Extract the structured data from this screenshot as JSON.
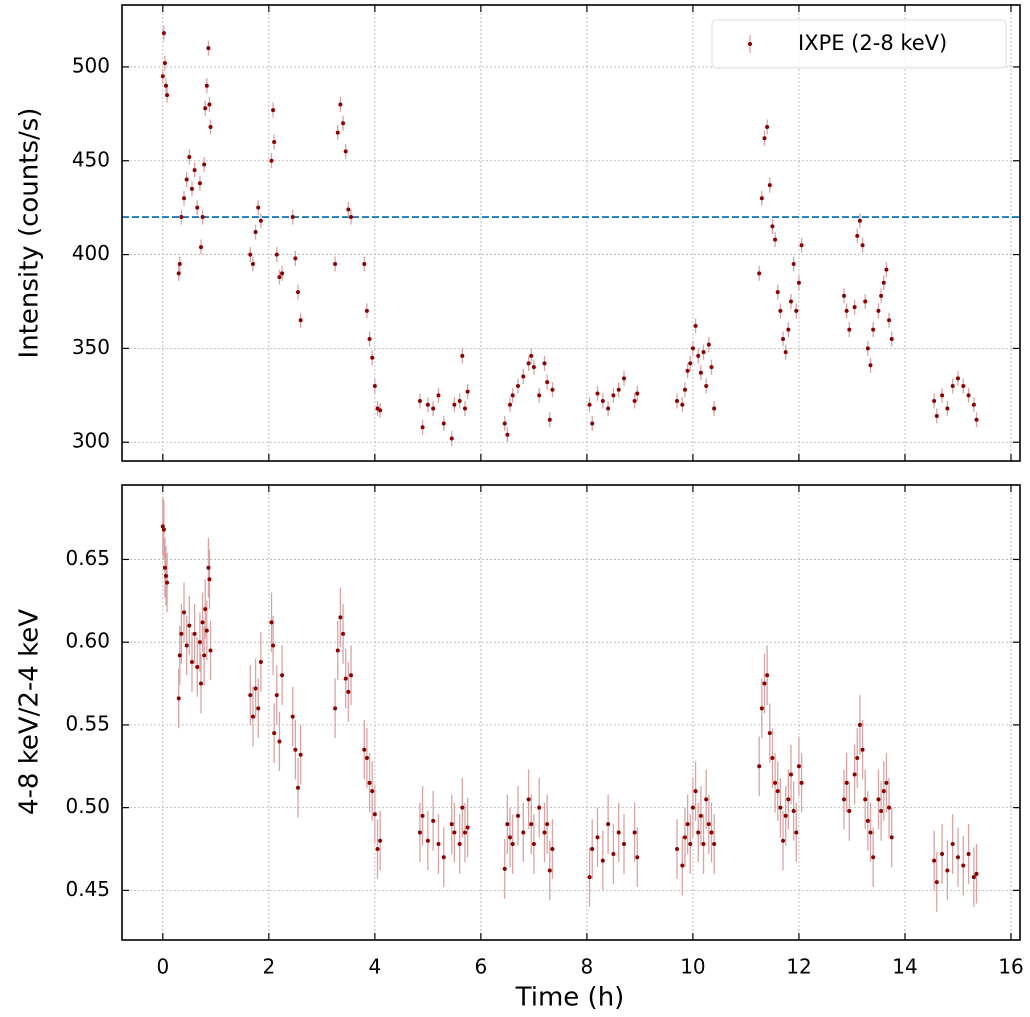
{
  "chart_data": [
    {
      "type": "errorbar",
      "ylabel": "Intensity (counts/s)",
      "legend": "upper right",
      "grid": true,
      "xlim": [
        -0.77,
        16.17
      ],
      "xticks": [
        0,
        2,
        4,
        6,
        8,
        10,
        12,
        14,
        16
      ],
      "ylim": [
        290,
        533
      ],
      "yticks": [
        300,
        350,
        400,
        450,
        500
      ],
      "reference_line": {
        "value": 420,
        "color": "#1f77b4",
        "style": "dashed"
      },
      "series": [
        {
          "name": "IXPE (2-8 keV)",
          "color": "#8b0000",
          "error_color": "#d9a3a3",
          "yerr": 4,
          "x": [
            0,
            0.02,
            0.04,
            0.06,
            0.08,
            0.3,
            0.32,
            0.35,
            0.4,
            0.45,
            0.5,
            0.55,
            0.6,
            0.65,
            0.7,
            0.72,
            0.75,
            0.78,
            0.8,
            0.83,
            0.86,
            0.88,
            0.9,
            1.65,
            1.7,
            1.75,
            1.8,
            1.85,
            2.05,
            2.08,
            2.1,
            2.15,
            2.2,
            2.25,
            2.45,
            2.5,
            2.55,
            2.6,
            3.25,
            3.3,
            3.35,
            3.4,
            3.45,
            3.5,
            3.55,
            3.8,
            3.85,
            3.9,
            3.95,
            4.0,
            4.05,
            4.1,
            4.85,
            4.9,
            5.0,
            5.1,
            5.2,
            5.3,
            5.45,
            5.5,
            5.6,
            5.65,
            5.7,
            5.75,
            6.45,
            6.5,
            6.55,
            6.6,
            6.7,
            6.8,
            6.9,
            6.95,
            7.0,
            7.1,
            7.2,
            7.25,
            7.3,
            7.35,
            8.05,
            8.1,
            8.2,
            8.3,
            8.4,
            8.5,
            8.6,
            8.7,
            8.9,
            8.95,
            9.7,
            9.8,
            9.85,
            9.9,
            9.95,
            10.0,
            10.05,
            10.1,
            10.15,
            10.2,
            10.25,
            10.3,
            10.35,
            10.4,
            11.25,
            11.3,
            11.35,
            11.4,
            11.45,
            11.5,
            11.55,
            11.6,
            11.65,
            11.7,
            11.75,
            11.8,
            11.85,
            11.9,
            11.95,
            12.0,
            12.05,
            12.85,
            12.9,
            12.95,
            13.05,
            13.1,
            13.15,
            13.2,
            13.25,
            13.3,
            13.35,
            13.4,
            13.5,
            13.55,
            13.6,
            13.65,
            13.7,
            13.75,
            14.55,
            14.6,
            14.7,
            14.8,
            14.9,
            15.0,
            15.1,
            15.2,
            15.3,
            15.35
          ],
          "values": [
            495,
            518,
            502,
            490,
            485,
            390,
            395,
            420,
            430,
            440,
            452,
            435,
            445,
            425,
            438,
            404,
            420,
            448,
            478,
            490,
            510,
            480,
            468,
            400,
            395,
            412,
            425,
            418,
            450,
            477,
            460,
            400,
            388,
            390,
            420,
            398,
            380,
            365,
            395,
            465,
            480,
            470,
            455,
            424,
            420,
            395,
            370,
            355,
            345,
            330,
            318,
            317,
            322,
            308,
            320,
            318,
            325,
            310,
            302,
            320,
            322,
            346,
            318,
            327,
            310,
            304,
            320,
            325,
            330,
            335,
            342,
            346,
            340,
            325,
            342,
            332,
            312,
            328,
            320,
            310,
            326,
            322,
            318,
            325,
            328,
            334,
            322,
            326,
            322,
            320,
            328,
            338,
            342,
            350,
            362,
            346,
            337,
            348,
            330,
            352,
            340,
            318,
            390,
            430,
            462,
            468,
            437,
            415,
            408,
            380,
            370,
            355,
            348,
            360,
            375,
            395,
            370,
            385,
            405,
            378,
            370,
            360,
            372,
            410,
            418,
            405,
            375,
            350,
            341,
            360,
            370,
            378,
            385,
            392,
            365,
            355,
            322,
            314,
            325,
            318,
            330,
            334,
            330,
            325,
            320,
            312
          ]
        }
      ]
    },
    {
      "type": "errorbar",
      "xlabel": "Time (h)",
      "ylabel": "4-8 keV/2-4 keV",
      "grid": true,
      "xlim": [
        -0.77,
        16.17
      ],
      "xticks": [
        0,
        2,
        4,
        6,
        8,
        10,
        12,
        14,
        16
      ],
      "ylim": [
        0.42,
        0.695
      ],
      "yticks": [
        0.45,
        {
          "value": 0.5,
          "label": "0.50"
        },
        0.55,
        {
          "value": 0.6,
          "label": "0.60"
        },
        0.65
      ],
      "series": [
        {
          "color": "#8b0000",
          "error_color": "#d9a3a3",
          "yerr": 0.018,
          "x": [
            0,
            0.02,
            0.04,
            0.06,
            0.08,
            0.3,
            0.32,
            0.35,
            0.4,
            0.45,
            0.5,
            0.55,
            0.6,
            0.65,
            0.7,
            0.72,
            0.75,
            0.78,
            0.8,
            0.83,
            0.86,
            0.88,
            0.9,
            1.65,
            1.7,
            1.75,
            1.8,
            1.85,
            2.05,
            2.08,
            2.1,
            2.15,
            2.2,
            2.25,
            2.45,
            2.5,
            2.55,
            2.6,
            3.25,
            3.3,
            3.35,
            3.4,
            3.45,
            3.5,
            3.55,
            3.8,
            3.85,
            3.9,
            3.95,
            4.0,
            4.05,
            4.1,
            4.85,
            4.9,
            5.0,
            5.1,
            5.2,
            5.3,
            5.45,
            5.5,
            5.6,
            5.65,
            5.7,
            5.75,
            6.45,
            6.5,
            6.55,
            6.6,
            6.7,
            6.8,
            6.9,
            6.95,
            7.0,
            7.1,
            7.2,
            7.25,
            7.3,
            7.35,
            8.05,
            8.1,
            8.2,
            8.3,
            8.4,
            8.5,
            8.6,
            8.7,
            8.9,
            8.95,
            9.7,
            9.8,
            9.85,
            9.9,
            9.95,
            10.0,
            10.05,
            10.1,
            10.15,
            10.2,
            10.25,
            10.3,
            10.35,
            10.4,
            11.25,
            11.3,
            11.35,
            11.4,
            11.45,
            11.5,
            11.55,
            11.6,
            11.65,
            11.7,
            11.75,
            11.8,
            11.85,
            11.9,
            11.95,
            12.0,
            12.05,
            12.85,
            12.9,
            12.95,
            13.05,
            13.1,
            13.15,
            13.2,
            13.25,
            13.3,
            13.35,
            13.4,
            13.5,
            13.55,
            13.6,
            13.65,
            13.7,
            13.75,
            14.55,
            14.6,
            14.7,
            14.8,
            14.9,
            15.0,
            15.1,
            15.2,
            15.3,
            15.35
          ],
          "values": [
            0.67,
            0.668,
            0.645,
            0.64,
            0.636,
            0.566,
            0.592,
            0.605,
            0.618,
            0.598,
            0.61,
            0.588,
            0.605,
            0.585,
            0.6,
            0.575,
            0.612,
            0.592,
            0.62,
            0.607,
            0.645,
            0.638,
            0.595,
            0.568,
            0.555,
            0.572,
            0.56,
            0.588,
            0.612,
            0.598,
            0.545,
            0.568,
            0.54,
            0.58,
            0.555,
            0.535,
            0.512,
            0.532,
            0.56,
            0.595,
            0.615,
            0.605,
            0.578,
            0.57,
            0.58,
            0.535,
            0.53,
            0.515,
            0.51,
            0.496,
            0.475,
            0.48,
            0.485,
            0.495,
            0.48,
            0.492,
            0.478,
            0.47,
            0.49,
            0.485,
            0.478,
            0.5,
            0.485,
            0.488,
            0.463,
            0.49,
            0.482,
            0.478,
            0.495,
            0.485,
            0.505,
            0.49,
            0.478,
            0.5,
            0.485,
            0.49,
            0.462,
            0.475,
            0.458,
            0.475,
            0.482,
            0.468,
            0.49,
            0.472,
            0.485,
            0.478,
            0.485,
            0.47,
            0.475,
            0.465,
            0.482,
            0.49,
            0.478,
            0.5,
            0.51,
            0.485,
            0.495,
            0.478,
            0.505,
            0.49,
            0.485,
            0.478,
            0.525,
            0.56,
            0.575,
            0.58,
            0.545,
            0.53,
            0.515,
            0.51,
            0.5,
            0.48,
            0.495,
            0.505,
            0.52,
            0.498,
            0.485,
            0.525,
            0.515,
            0.505,
            0.515,
            0.498,
            0.52,
            0.53,
            0.55,
            0.535,
            0.505,
            0.492,
            0.485,
            0.47,
            0.505,
            0.498,
            0.51,
            0.515,
            0.5,
            0.482,
            0.468,
            0.455,
            0.472,
            0.462,
            0.478,
            0.47,
            0.465,
            0.472,
            0.458,
            0.46
          ]
        }
      ]
    }
  ]
}
